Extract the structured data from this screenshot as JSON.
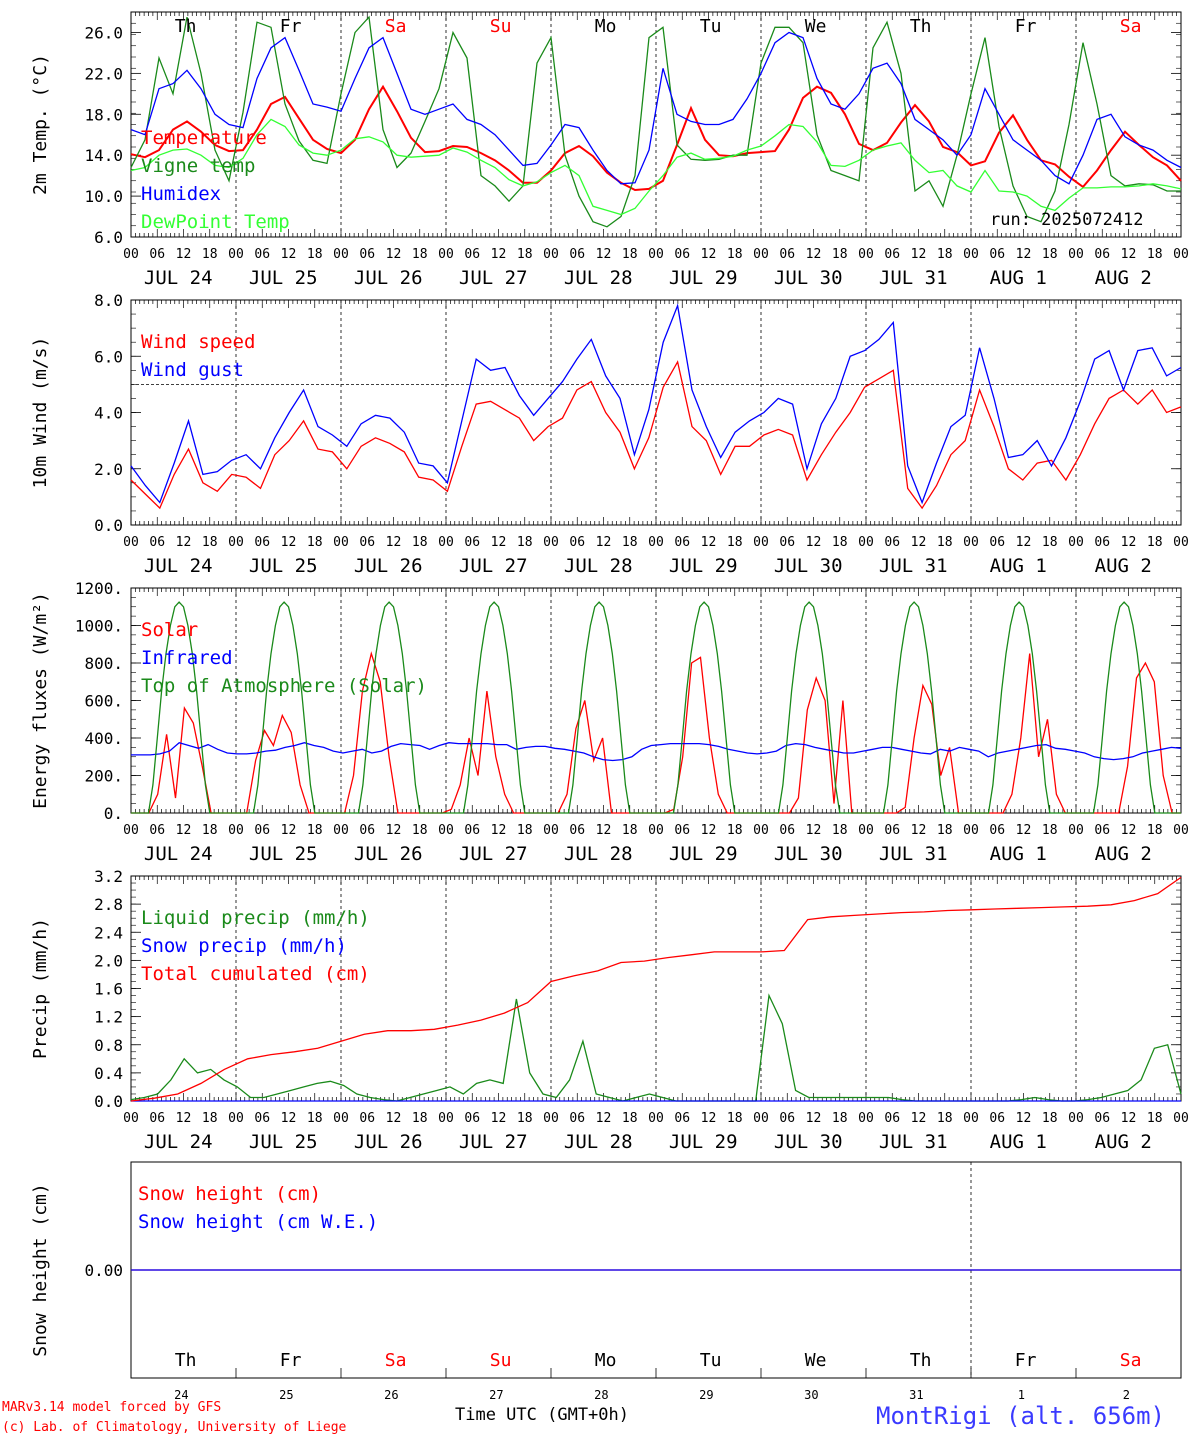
{
  "days": {
    "labels": [
      "Th",
      "Fr",
      "Sa",
      "Su",
      "Mo",
      "Tu",
      "We",
      "Th",
      "Fr",
      "Sa"
    ],
    "weekend_flags": [
      false,
      false,
      true,
      true,
      false,
      false,
      false,
      false,
      false,
      true
    ],
    "dates": [
      "JUL 24",
      "JUL 25",
      "JUL 26",
      "JUL 27",
      "JUL 28",
      "JUL 29",
      "JUL 30",
      "JUL 31",
      "AUG  1",
      "AUG  2"
    ],
    "day_numbers": [
      "24",
      "25",
      "26",
      "27",
      "28",
      "29",
      "30",
      "31",
      "1",
      "2"
    ],
    "hour_labels": [
      "00",
      "06",
      "12",
      "18"
    ],
    "end_label": "00"
  },
  "colors": {
    "red": "#ff0000",
    "green": "#1a8a1a",
    "blue": "#0000ff",
    "lightgreen": "#33ff33",
    "footer_blue": "#3a3aff",
    "weekend": "#ff0000"
  },
  "run_label": "run: 2025072412",
  "footer": {
    "model": "MARv3.14 model forced by GFS",
    "lab": "(c) Lab. of Climatology, University of Liege",
    "xaxis": "Time UTC (GMT+0h)",
    "station": "MontRigi (alt. 656m)"
  },
  "chart_data": [
    {
      "type": "line",
      "ylabel": "2m Temp. (°C)",
      "ylim": [
        6,
        28
      ],
      "yticks": [
        "6.0",
        "10.0",
        "14.0",
        "18.0",
        "22.0",
        "26.0"
      ],
      "series": [
        {
          "name": "Temperature",
          "color": "red",
          "values": [
            14.1,
            13.8,
            14.5,
            16.5,
            17.3,
            16.3,
            15.0,
            14.4,
            14.5,
            16.5,
            19.0,
            19.7,
            17.6,
            15.5,
            14.6,
            14.2,
            15.5,
            18.5,
            20.7,
            18.3,
            15.7,
            14.3,
            14.4,
            14.9,
            14.8,
            14.2,
            13.5,
            12.5,
            11.3,
            11.3,
            12.5,
            14.2,
            14.9,
            13.9,
            12.3,
            11.3,
            10.6,
            10.7,
            11.5,
            15.0,
            18.6,
            15.5,
            14.0,
            13.9,
            14.2,
            14.3,
            14.4,
            16.5,
            19.6,
            20.7,
            20.1,
            18.0,
            15.1,
            14.5,
            15.2,
            17.2,
            18.9,
            17.3,
            14.8,
            14.3,
            13.0,
            13.4,
            16.2,
            17.9,
            15.5,
            13.5,
            13.1,
            11.9,
            10.9,
            12.5,
            14.5,
            16.3,
            15.0,
            13.8,
            13.0,
            11.5
          ]
        },
        {
          "name": "Vigne temp",
          "color": "green",
          "values": [
            12.8,
            15.5,
            23.5,
            20.0,
            27.5,
            22.0,
            14.5,
            11.5,
            18.2,
            27.0,
            26.5,
            19.0,
            15.4,
            13.5,
            13.2,
            20.0,
            26.0,
            27.5,
            16.5,
            12.8,
            14.2,
            17.3,
            20.5,
            26.0,
            23.5,
            12.0,
            11.0,
            9.5,
            11.0,
            23.0,
            25.5,
            14.0,
            10.0,
            7.5,
            7.0,
            8.0,
            12.0,
            25.5,
            26.5,
            15.0,
            13.6,
            13.5,
            13.6,
            14.0,
            14.0,
            23.0,
            26.5,
            26.5,
            25.0,
            16.0,
            12.5,
            12.0,
            11.5,
            24.5,
            27.0,
            22.0,
            10.5,
            11.5,
            9.0,
            14.0,
            20.0,
            25.5,
            16.8,
            11.0,
            8.0,
            7.5,
            10.5,
            17.0,
            25.0,
            19.0,
            12.0,
            11.0,
            11.2,
            11.1,
            10.5,
            10.5
          ]
        },
        {
          "name": "Humidex",
          "color": "blue",
          "values": [
            16.5,
            16.0,
            20.5,
            21.0,
            22.3,
            20.5,
            18.0,
            17.0,
            16.7,
            21.5,
            24.5,
            25.5,
            22.3,
            19.0,
            18.7,
            18.3,
            21.5,
            24.5,
            25.5,
            22.0,
            18.5,
            18.0,
            18.5,
            19.0,
            17.5,
            17.0,
            16.0,
            14.5,
            13.0,
            13.2,
            15.0,
            17.0,
            16.7,
            14.5,
            12.5,
            11.2,
            11.3,
            14.5,
            22.5,
            18.0,
            17.3,
            17.0,
            17.0,
            17.5,
            19.5,
            22.0,
            25.0,
            26.0,
            25.5,
            21.5,
            19.0,
            18.5,
            20.0,
            22.5,
            23.0,
            21.0,
            17.5,
            16.5,
            15.5,
            14.0,
            16.0,
            20.5,
            18.0,
            15.5,
            14.5,
            13.5,
            12.0,
            11.2,
            14.0,
            17.5,
            18.0,
            15.8,
            15.0,
            14.5,
            13.5,
            12.8
          ]
        },
        {
          "name": "DewPoint Temp",
          "color": "lightgreen",
          "values": [
            12.5,
            12.8,
            14.0,
            14.5,
            14.6,
            14.0,
            13.0,
            12.8,
            13.7,
            16.0,
            17.5,
            16.8,
            15.0,
            14.2,
            14.0,
            14.5,
            15.6,
            15.8,
            15.3,
            14.0,
            13.8,
            13.9,
            14.0,
            14.7,
            14.3,
            13.5,
            12.8,
            11.6,
            11.0,
            11.4,
            12.3,
            13.0,
            12.0,
            9.0,
            8.6,
            8.2,
            8.8,
            10.5,
            12.0,
            13.8,
            14.2,
            13.6,
            13.7,
            13.9,
            14.5,
            14.9,
            15.9,
            17.0,
            16.8,
            15.3,
            13.0,
            12.9,
            13.5,
            14.5,
            14.9,
            15.2,
            13.5,
            12.3,
            12.5,
            11.0,
            10.4,
            12.5,
            10.5,
            10.4,
            10.0,
            9.0,
            8.6,
            9.8,
            10.8,
            10.8,
            10.9,
            10.9,
            11.0,
            11.2,
            11.0,
            10.7
          ]
        }
      ]
    },
    {
      "type": "line",
      "ylabel": "10m Wind (m/s)",
      "ylim": [
        0,
        8
      ],
      "yticks": [
        "0.0",
        "2.0",
        "4.0",
        "6.0",
        "8.0"
      ],
      "reference_line": 5,
      "series": [
        {
          "name": "Wind speed",
          "color": "red",
          "values": [
            1.6,
            1.1,
            0.6,
            1.8,
            2.7,
            1.5,
            1.2,
            1.8,
            1.7,
            1.3,
            2.5,
            3.0,
            3.7,
            2.7,
            2.6,
            2.0,
            2.8,
            3.1,
            2.9,
            2.6,
            1.7,
            1.6,
            1.2,
            2.8,
            4.3,
            4.4,
            4.1,
            3.8,
            3.0,
            3.5,
            3.8,
            4.8,
            5.1,
            4.0,
            3.3,
            2.0,
            3.1,
            4.9,
            5.8,
            3.5,
            3.0,
            1.8,
            2.8,
            2.8,
            3.2,
            3.4,
            3.2,
            1.6,
            2.5,
            3.3,
            4.0,
            4.9,
            5.2,
            5.5,
            1.3,
            0.6,
            1.4,
            2.5,
            3.0,
            4.8,
            3.5,
            2.0,
            1.6,
            2.2,
            2.3,
            1.6,
            2.5,
            3.6,
            4.5,
            4.8,
            4.3,
            4.8,
            4.0,
            4.2
          ]
        },
        {
          "name": "Wind gust",
          "color": "blue",
          "values": [
            2.1,
            1.4,
            0.8,
            2.2,
            3.7,
            1.8,
            1.9,
            2.3,
            2.5,
            2.0,
            3.1,
            4.0,
            4.8,
            3.5,
            3.2,
            2.8,
            3.6,
            3.9,
            3.8,
            3.3,
            2.2,
            2.1,
            1.5,
            3.7,
            5.9,
            5.5,
            5.6,
            4.6,
            3.9,
            4.5,
            5.1,
            5.9,
            6.6,
            5.3,
            4.5,
            2.5,
            4.1,
            6.5,
            7.8,
            4.8,
            3.5,
            2.4,
            3.3,
            3.7,
            4.0,
            4.5,
            4.3,
            2.0,
            3.6,
            4.5,
            6.0,
            6.2,
            6.6,
            7.2,
            2.1,
            0.8,
            2.2,
            3.5,
            3.9,
            6.3,
            4.5,
            2.4,
            2.5,
            3.0,
            2.1,
            3.1,
            4.4,
            5.9,
            6.2,
            4.8,
            6.2,
            6.3,
            5.3,
            5.6
          ]
        }
      ]
    },
    {
      "type": "line",
      "ylabel": "Energy fluxes (W/m²)",
      "ylim": [
        0,
        1200
      ],
      "yticks": [
        "0.",
        "200.",
        "400.",
        "600.",
        "800.",
        "1000.",
        "1200."
      ],
      "series": [
        {
          "name": "Solar",
          "color": "red",
          "values": [
            0,
            0,
            0,
            100,
            420,
            80,
            560,
            480,
            250,
            0,
            0,
            0,
            0,
            0,
            280,
            440,
            360,
            520,
            430,
            150,
            0,
            0,
            0,
            0,
            0,
            200,
            650,
            850,
            700,
            300,
            0,
            0,
            0,
            0,
            0,
            0,
            20,
            150,
            400,
            200,
            650,
            300,
            100,
            0,
            0,
            0,
            0,
            0,
            0,
            100,
            450,
            600,
            280,
            400,
            0,
            0,
            0,
            0,
            0,
            0,
            0,
            20,
            300,
            800,
            830,
            400,
            100,
            0,
            0,
            0,
            0,
            0,
            0,
            0,
            0,
            80,
            550,
            720,
            600,
            50,
            600,
            0,
            0,
            0,
            0,
            0,
            0,
            30,
            400,
            680,
            580,
            200,
            350,
            0,
            0,
            0,
            0,
            0,
            0,
            100,
            400,
            850,
            300,
            500,
            100,
            0,
            0,
            0,
            0,
            0,
            0,
            0,
            250,
            720,
            800,
            700,
            200,
            0,
            0
          ]
        },
        {
          "name": "Infrared",
          "color": "blue",
          "values": [
            310,
            310,
            310,
            315,
            330,
            375,
            360,
            345,
            365,
            340,
            320,
            315,
            315,
            320,
            330,
            335,
            350,
            360,
            375,
            360,
            350,
            330,
            320,
            330,
            340,
            320,
            330,
            355,
            370,
            365,
            360,
            340,
            360,
            375,
            370,
            370,
            370,
            370,
            365,
            365,
            340,
            350,
            355,
            355,
            345,
            340,
            330,
            320,
            300,
            285,
            280,
            285,
            300,
            340,
            360,
            365,
            370,
            370,
            370,
            370,
            365,
            355,
            340,
            330,
            320,
            315,
            320,
            330,
            360,
            370,
            365,
            350,
            340,
            330,
            320,
            320,
            330,
            340,
            350,
            350,
            340,
            330,
            320,
            315,
            340,
            330,
            350,
            340,
            330,
            300,
            320,
            330,
            340,
            350,
            360,
            365,
            345,
            340,
            330,
            320,
            300,
            290,
            285,
            290,
            300,
            320,
            330,
            340,
            350,
            345
          ]
        },
        {
          "name": "Top of Atmosphere (Solar)",
          "color": "green",
          "values": [
            0,
            0,
            0,
            0,
            0,
            150,
            400,
            650,
            850,
            1000,
            1100,
            1125,
            1100,
            1000,
            850,
            650,
            400,
            150,
            0,
            0,
            0,
            0,
            0,
            0
          ]
        }
      ]
    },
    {
      "type": "line",
      "ylabel": "Precip (mm/h)",
      "ylim": [
        0,
        3.2
      ],
      "yticks": [
        "0.0",
        "0.4",
        "0.8",
        "1.2",
        "1.6",
        "2.0",
        "2.4",
        "2.8",
        "3.2"
      ],
      "series": [
        {
          "name": "Liquid precip (mm/h)",
          "color": "green",
          "values": [
            0.02,
            0.05,
            0.1,
            0.3,
            0.6,
            0.4,
            0.45,
            0.3,
            0.2,
            0.05,
            0.05,
            0.1,
            0.15,
            0.2,
            0.25,
            0.28,
            0.22,
            0.1,
            0.05,
            0.02,
            0.0,
            0.05,
            0.1,
            0.15,
            0.2,
            0.1,
            0.25,
            0.3,
            0.25,
            1.45,
            0.4,
            0.1,
            0.05,
            0.3,
            0.85,
            0.1,
            0.05,
            0.0,
            0.05,
            0.1,
            0.05,
            0.0,
            0.0,
            0.0,
            0.0,
            0.0,
            0.0,
            0.0,
            1.5,
            1.1,
            0.15,
            0.05,
            0.05,
            0.05,
            0.05,
            0.05,
            0.05,
            0.05,
            0.02,
            0.0,
            0.0,
            0.0,
            0.0,
            0.0,
            0.0,
            0.0,
            0.0,
            0.02,
            0.05,
            0.02,
            0.0,
            0.0,
            0.02,
            0.05,
            0.1,
            0.15,
            0.3,
            0.75,
            0.8,
            0.1
          ]
        },
        {
          "name": "Snow precip (mm/h)",
          "color": "blue",
          "values": [
            0,
            0,
            0,
            0,
            0,
            0,
            0,
            0,
            0,
            0
          ]
        },
        {
          "name": "Total cumulated (cm)",
          "color": "red",
          "values": [
            0.0,
            0.04,
            0.1,
            0.25,
            0.45,
            0.6,
            0.66,
            0.7,
            0.75,
            0.85,
            0.95,
            1.0,
            1.0,
            1.02,
            1.08,
            1.15,
            1.25,
            1.4,
            1.7,
            1.78,
            1.85,
            1.97,
            1.99,
            2.04,
            2.08,
            2.12,
            2.12,
            2.12,
            2.14,
            2.58,
            2.62,
            2.64,
            2.66,
            2.68,
            2.69,
            2.71,
            2.72,
            2.73,
            2.74,
            2.75,
            2.76,
            2.77,
            2.79,
            2.85,
            2.95,
            3.18
          ]
        }
      ]
    },
    {
      "type": "line",
      "ylabel": "Snow height (cm)",
      "yticks": [
        "0.00"
      ],
      "series": [
        {
          "name": "Snow height (cm)",
          "color": "red",
          "values": [
            0,
            0,
            0,
            0,
            0,
            0,
            0,
            0,
            0,
            0,
            0
          ]
        },
        {
          "name": "Snow height (cm W.E.)",
          "color": "blue",
          "values": [
            0,
            0,
            0,
            0,
            0,
            0,
            0,
            0,
            0,
            0,
            0
          ]
        }
      ]
    }
  ]
}
